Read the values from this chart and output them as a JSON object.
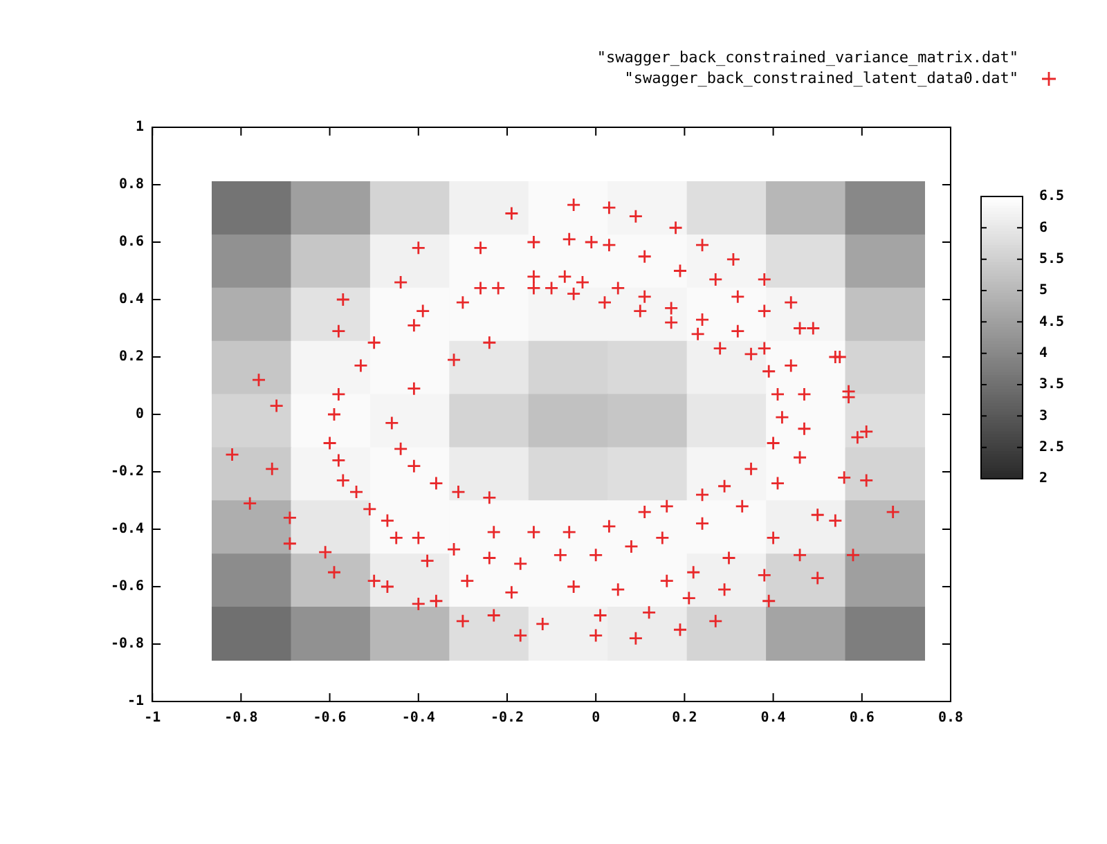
{
  "chart_data": [
    {
      "type": "heatmap",
      "annotations": [
        "\"swagger_back_constrained_variance_matrix.dat\""
      ],
      "categories": [
        null,
        null,
        null,
        null,
        null,
        null,
        null,
        null,
        null
      ],
      "y_categories": [
        null,
        null,
        null,
        null,
        null,
        null,
        null,
        null,
        null
      ],
      "clim": [
        2,
        6.5
      ],
      "cticks": [
        2,
        2.5,
        3,
        3.5,
        4,
        4.5,
        5,
        5.5,
        6,
        6.5
      ],
      "cells": [
        [
          3.6,
          4.5,
          5.6,
          6.2,
          6.4,
          6.3,
          5.8,
          5.0,
          4.0
        ],
        [
          4.2,
          5.3,
          6.2,
          6.4,
          6.4,
          6.4,
          6.3,
          5.8,
          4.6
        ],
        [
          4.8,
          5.9,
          6.4,
          6.4,
          6.3,
          6.3,
          6.4,
          6.3,
          5.2
        ],
        [
          5.3,
          6.3,
          6.4,
          6.0,
          5.6,
          5.7,
          6.2,
          6.4,
          5.6
        ],
        [
          5.6,
          6.4,
          6.3,
          5.6,
          5.2,
          5.3,
          6.0,
          6.4,
          5.8
        ],
        [
          5.4,
          6.3,
          6.4,
          6.1,
          5.7,
          5.8,
          6.3,
          6.4,
          5.6
        ],
        [
          4.8,
          6.0,
          6.4,
          6.4,
          6.4,
          6.4,
          6.4,
          6.2,
          5.1
        ],
        [
          4.1,
          5.2,
          6.1,
          6.4,
          6.4,
          6.4,
          6.2,
          5.6,
          4.5
        ],
        [
          3.5,
          4.2,
          5.0,
          5.8,
          6.2,
          6.1,
          5.6,
          4.6,
          3.8
        ]
      ]
    },
    {
      "type": "scatter",
      "xlim": [
        -1,
        0.8
      ],
      "xticks": [
        -1,
        -0.8,
        -0.6,
        -0.4,
        -0.2,
        0,
        0.2,
        0.4,
        0.6,
        0.8
      ],
      "ylim": [
        -1,
        1
      ],
      "yticks": [
        -1,
        -0.8,
        -0.6,
        -0.4,
        -0.2,
        0,
        0.2,
        0.4,
        0.6,
        0.8,
        1
      ],
      "legend": "top right",
      "marker": "cross",
      "series": [
        {
          "name": "\"swagger_back_constrained_latent_data0.dat\"",
          "color": "#e8282a",
          "x": [
            -0.05,
            -0.19,
            0.03,
            0.09,
            0.18,
            -0.4,
            -0.26,
            -0.14,
            -0.06,
            -0.01,
            0.03,
            0.11,
            0.24,
            0.31,
            0.19,
            -0.44,
            -0.26,
            -0.22,
            -0.14,
            -0.14,
            -0.1,
            -0.07,
            -0.05,
            -0.03,
            0.05,
            0.27,
            0.38,
            -0.57,
            -0.39,
            -0.3,
            0.02,
            0.1,
            0.11,
            0.17,
            0.32,
            0.38,
            0.44,
            -0.41,
            -0.58,
            0.17,
            0.24,
            0.32,
            0.46,
            0.49,
            -0.5,
            -0.24,
            0.23,
            0.28,
            0.38,
            -0.53,
            -0.32,
            0.35,
            0.39,
            0.44,
            0.54,
            0.55,
            -0.76,
            -0.41,
            -0.58,
            0.41,
            0.47,
            0.57,
            0.57,
            -0.72,
            -0.59,
            0.42,
            -0.46,
            0.47,
            0.61,
            0.59,
            -0.6,
            -0.44,
            0.4,
            -0.82,
            -0.58,
            0.46,
            -0.41,
            -0.73,
            0.35,
            -0.57,
            -0.36,
            0.41,
            0.56,
            0.61,
            -0.54,
            -0.31,
            0.29,
            0.24,
            -0.78,
            -0.51,
            -0.24,
            0.16,
            0.33,
            0.11,
            -0.69,
            -0.47,
            0.5,
            0.54,
            0.67,
            0.03,
            0.24,
            -0.23,
            -0.14,
            -0.06,
            -0.45,
            -0.4,
            0.15,
            0.4,
            -0.69,
            -0.32,
            0.08,
            -0.61,
            0.46,
            0.58,
            -0.24,
            -0.08,
            0,
            -0.38,
            -0.17,
            0.3,
            -0.59,
            0.22,
            0.38,
            -0.29,
            0.16,
            0.5,
            -0.5,
            -0.47,
            -0.05,
            0.05,
            -0.19,
            0.29,
            0.21,
            -0.4,
            -0.36,
            0.39,
            -0.23,
            0.12,
            -0.3,
            0.01,
            -0.12,
            0.27,
            0.19,
            -0.17,
            0,
            0.09
          ],
          "values": [
            0.73,
            0.7,
            0.72,
            0.69,
            0.65,
            0.58,
            0.58,
            0.6,
            0.61,
            0.6,
            0.59,
            0.55,
            0.59,
            0.54,
            0.5,
            0.46,
            0.44,
            0.44,
            0.48,
            0.44,
            0.44,
            0.48,
            0.42,
            0.46,
            0.44,
            0.47,
            0.47,
            0.4,
            0.36,
            0.39,
            0.39,
            0.36,
            0.41,
            0.37,
            0.41,
            0.36,
            0.39,
            0.31,
            0.29,
            0.32,
            0.33,
            0.29,
            0.3,
            0.3,
            0.25,
            0.25,
            0.28,
            0.23,
            0.23,
            0.17,
            0.19,
            0.21,
            0.15,
            0.17,
            0.2,
            0.2,
            0.12,
            0.09,
            0.07,
            0.07,
            0.07,
            0.08,
            0.06,
            0.03,
            0,
            -0.01,
            -0.03,
            -0.05,
            -0.06,
            -0.08,
            -0.1,
            -0.12,
            -0.1,
            -0.14,
            -0.16,
            -0.15,
            -0.18,
            -0.19,
            -0.19,
            -0.23,
            -0.24,
            -0.24,
            -0.22,
            -0.23,
            -0.27,
            -0.27,
            -0.25,
            -0.28,
            -0.31,
            -0.33,
            -0.29,
            -0.32,
            -0.32,
            -0.34,
            -0.36,
            -0.37,
            -0.35,
            -0.37,
            -0.34,
            -0.39,
            -0.38,
            -0.41,
            -0.41,
            -0.41,
            -0.43,
            -0.43,
            -0.43,
            -0.43,
            -0.45,
            -0.47,
            -0.46,
            -0.48,
            -0.49,
            -0.49,
            -0.5,
            -0.49,
            -0.49,
            -0.51,
            -0.52,
            -0.5,
            -0.55,
            -0.55,
            -0.56,
            -0.58,
            -0.58,
            -0.57,
            -0.58,
            -0.6,
            -0.6,
            -0.61,
            -0.62,
            -0.61,
            -0.64,
            -0.66,
            -0.65,
            -0.65,
            -0.7,
            -0.69,
            -0.72,
            -0.7,
            -0.73,
            -0.72,
            -0.75,
            -0.77,
            -0.77,
            -0.78
          ]
        }
      ]
    }
  ]
}
